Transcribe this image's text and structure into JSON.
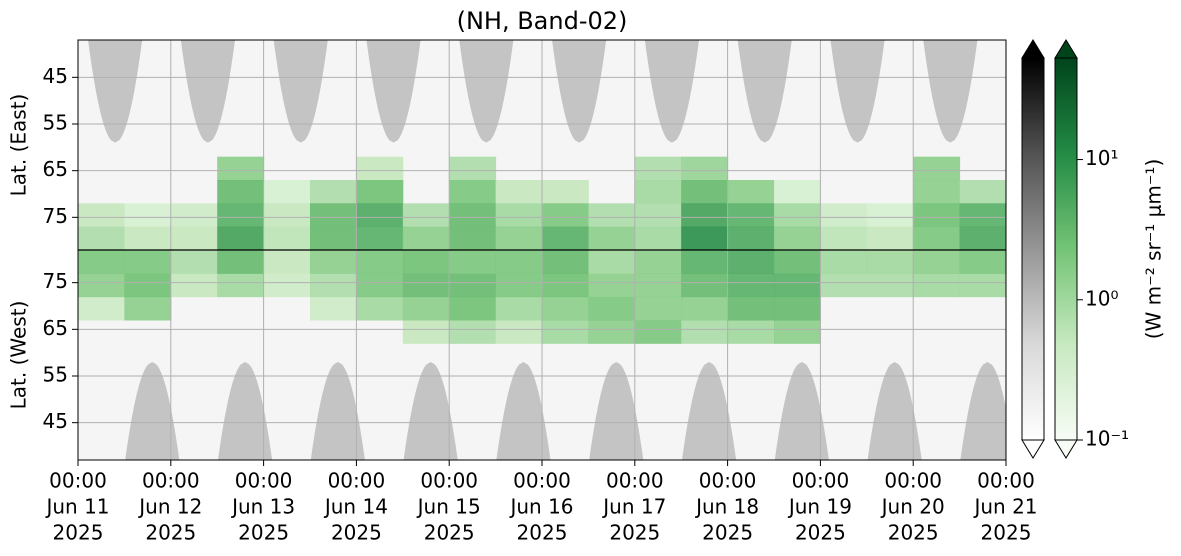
{
  "chart_data": {
    "type": "heatmap",
    "title": "(NH, Band-02)",
    "xlim": [
      "2025-06-11T00:00",
      "2025-06-21T00:00"
    ],
    "xticks": [
      {
        "value": "2025-06-11T00:00",
        "label": [
          "00:00",
          "Jun 11",
          "2025"
        ]
      },
      {
        "value": "2025-06-12T00:00",
        "label": [
          "00:00",
          "Jun 12",
          "2025"
        ]
      },
      {
        "value": "2025-06-13T00:00",
        "label": [
          "00:00",
          "Jun 13",
          "2025"
        ]
      },
      {
        "value": "2025-06-14T00:00",
        "label": [
          "00:00",
          "Jun 14",
          "2025"
        ]
      },
      {
        "value": "2025-06-15T00:00",
        "label": [
          "00:00",
          "Jun 15",
          "2025"
        ]
      },
      {
        "value": "2025-06-16T00:00",
        "label": [
          "00:00",
          "Jun 16",
          "2025"
        ]
      },
      {
        "value": "2025-06-17T00:00",
        "label": [
          "00:00",
          "Jun 17",
          "2025"
        ]
      },
      {
        "value": "2025-06-18T00:00",
        "label": [
          "00:00",
          "Jun 18",
          "2025"
        ]
      },
      {
        "value": "2025-06-19T00:00",
        "label": [
          "00:00",
          "Jun 19",
          "2025"
        ]
      },
      {
        "value": "2025-06-20T00:00",
        "label": [
          "00:00",
          "Jun 20",
          "2025"
        ]
      },
      {
        "value": "2025-06-21T00:00",
        "label": [
          "00:00",
          "Jun 21",
          "2025"
        ]
      }
    ],
    "grid": true,
    "panels": [
      {
        "ylabel": "Lat. (East)",
        "ylim": [
          37,
          82
        ],
        "yticks": [
          45,
          55,
          65,
          75
        ],
        "lat_edges": [
          62,
          67,
          72,
          77,
          82
        ],
        "z": [
          [
            null,
            null,
            null,
            1.5,
            null,
            null,
            0.5,
            null,
            0.8,
            null,
            null,
            null,
            0.8,
            1.2,
            null,
            null,
            null,
            null,
            1.5,
            null
          ],
          [
            null,
            null,
            null,
            3,
            0.3,
            0.8,
            2.5,
            null,
            2,
            0.5,
            0.5,
            null,
            1,
            3,
            1.5,
            0.3,
            null,
            null,
            1.5,
            0.8
          ],
          [
            0.5,
            0.3,
            0.4,
            4,
            0.5,
            3,
            5,
            0.8,
            3,
            1,
            2,
            0.8,
            0.8,
            6,
            4,
            1,
            0.4,
            0.3,
            2.5,
            4
          ],
          [
            0.8,
            0.5,
            0.5,
            6,
            0.6,
            3,
            4,
            1.5,
            3,
            1.5,
            4,
            1.5,
            1,
            10,
            5,
            1.5,
            0.6,
            0.5,
            2,
            5
          ]
        ],
        "night_masks": {
          "color": "#c4c4c4",
          "edge_lat": 59,
          "half_width_hours": 7,
          "x": [
            "2025-06-11T09:36",
            "2025-06-12T09:36",
            "2025-06-13T09:36",
            "2025-06-14T09:36",
            "2025-06-15T09:36",
            "2025-06-16T09:36",
            "2025-06-17T09:36",
            "2025-06-18T09:36",
            "2025-06-19T09:36",
            "2025-06-20T09:36"
          ]
        }
      },
      {
        "ylabel": "Lat. (West)",
        "ylim": [
          82,
          37
        ],
        "yticks": [
          75,
          65,
          55,
          45
        ],
        "lat_edges": [
          62,
          67,
          72,
          77,
          82
        ],
        "z": [
          [
            null,
            null,
            null,
            null,
            null,
            null,
            null,
            0.5,
            0.8,
            0.5,
            1,
            1.5,
            2,
            0.8,
            1,
            1.5,
            null,
            null,
            null,
            null
          ],
          [
            0.4,
            1.5,
            null,
            null,
            null,
            0.4,
            1,
            1.5,
            2.5,
            1,
            1.5,
            2,
            1.5,
            1.5,
            3,
            3,
            null,
            null,
            null,
            null
          ],
          [
            1.5,
            2.5,
            0.5,
            1,
            0.4,
            0.8,
            2,
            3,
            3,
            2,
            2.5,
            1.5,
            1.5,
            3,
            4,
            4,
            0.8,
            0.8,
            1,
            1
          ],
          [
            2,
            2,
            0.8,
            3,
            0.5,
            1.5,
            2,
            2.5,
            2,
            2,
            3,
            1,
            1.5,
            4,
            5,
            3,
            1,
            1,
            1.5,
            2
          ]
        ],
        "night_masks": {
          "color": "#c4c4c4",
          "edge_lat": 58,
          "half_width_hours": 7,
          "x": [
            "2025-06-11T19:12",
            "2025-06-12T19:12",
            "2025-06-13T19:12",
            "2025-06-14T19:12",
            "2025-06-15T19:12",
            "2025-06-16T19:12",
            "2025-06-17T19:12",
            "2025-06-18T19:12",
            "2025-06-19T19:12",
            "2025-06-20T19:12"
          ]
        }
      }
    ],
    "colorbar": {
      "label": "(W m⁻² sr⁻¹ μm⁻¹)",
      "log": true,
      "clim": [
        0.1,
        53
      ],
      "ticks": [
        {
          "value": 0.1,
          "label": "10⁻¹"
        },
        {
          "value": 1,
          "label": "10⁰"
        },
        {
          "value": 10,
          "label": "10¹"
        }
      ],
      "cmap": [
        "#f7fcf5",
        "#c7e9c0",
        "#74c476",
        "#238b45",
        "#00441b"
      ],
      "cmap2": [
        "#ffffff",
        "#d9d9d9",
        "#969696",
        "#525252",
        "#000000"
      ]
    }
  }
}
